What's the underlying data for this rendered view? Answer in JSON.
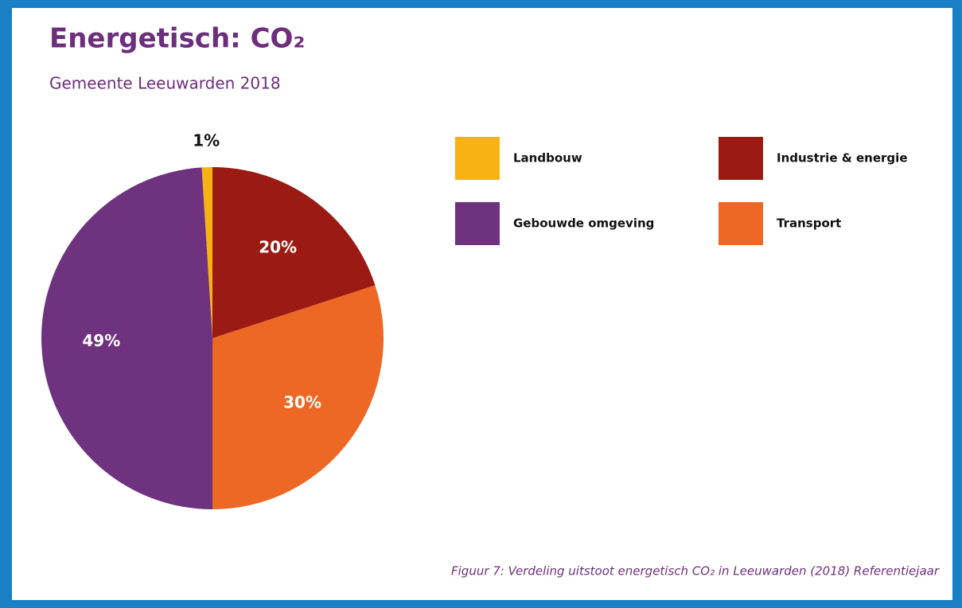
{
  "chart_data": {
    "type": "pie",
    "title": "Energetisch: CO₂",
    "subtitle": "Gemeente Leeuwarden 2018",
    "caption": "Figuur 7: Verdeling uitstoot energetisch CO₂ in Leeuwarden (2018) Referentiejaar",
    "categories": [
      "Landbouw",
      "Industrie & energie",
      "Transport",
      "Gebouwde omgeving"
    ],
    "values": [
      1,
      20,
      30,
      49
    ],
    "value_labels": [
      "1%",
      "20%",
      "30%",
      "49%"
    ],
    "colors": [
      "#f9b214",
      "#9b1b14",
      "#ec6824",
      "#6e327f"
    ]
  }
}
